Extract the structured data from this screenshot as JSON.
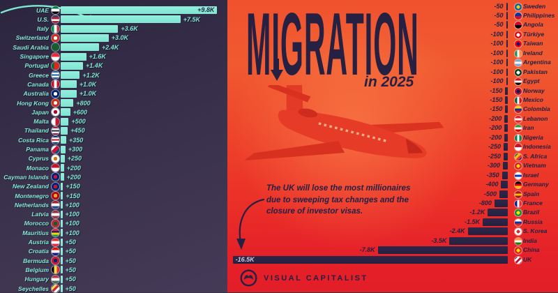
{
  "title": {
    "main": "MIGRATION",
    "sub": "in 2025"
  },
  "annotation": {
    "lines": [
      "The UK will lose the most millionaires",
      "due to sweeping tax changes and the",
      "closure of investor visas."
    ]
  },
  "footer": {
    "brand": "VISUAL CAPITALIST"
  },
  "colors": {
    "left_bg": "#38304a",
    "teal": "#7fe9d3",
    "navy": "#262042",
    "red_top": "#f0522e",
    "red_bottom": "#e21e27",
    "uk_inside_label": "#cfc9dd"
  },
  "chart_data": [
    {
      "type": "bar",
      "title": "Projected millionaires gained in 2025",
      "orientation": "horizontal",
      "legend_position": "none",
      "categories": [
        "UAE",
        "U.S.",
        "Italy",
        "Switzerland",
        "Saudi Arabia",
        "Singapore",
        "Portugal",
        "Greece",
        "Canada",
        "Australia",
        "Hong Kong",
        "Japan",
        "Malta",
        "Thailand",
        "Costa Rica",
        "Panama",
        "Cyprus",
        "Monaco",
        "Cayman Islands",
        "New Zealand",
        "Montenegro",
        "Netherlands",
        "Latvia",
        "Morocco",
        "Mauritius",
        "Austria",
        "Croatia",
        "Bermuda",
        "Belgium",
        "Hungary",
        "Seychelles"
      ],
      "values": [
        9800,
        7500,
        3600,
        3000,
        2400,
        1600,
        1400,
        1200,
        1000,
        1000,
        800,
        600,
        500,
        450,
        350,
        300,
        250,
        200,
        200,
        150,
        150,
        100,
        100,
        100,
        100,
        50,
        50,
        50,
        50,
        50,
        50
      ],
      "labels": [
        "+9.8K",
        "+7.5K",
        "+3.6K",
        "+3.0K",
        "+2.4K",
        "+1.6K",
        "+1.4K",
        "+1.2K",
        "+1.0K",
        "+1.0K",
        "+800",
        "+600",
        "+500",
        "+450",
        "+350",
        "+300",
        "+250",
        "+200",
        "+200",
        "+150",
        "+150",
        "+100",
        "+100",
        "+100",
        "+100",
        "+50",
        "+50",
        "+50",
        "+50",
        "+50",
        "+50"
      ],
      "flags": [
        {
          "d": "rows",
          "c": [
            "#00843d",
            "#ffffff",
            "#000000"
          ]
        },
        {
          "d": "rows",
          "c": [
            "#3c3b6e",
            "#b22234",
            "#ffffff",
            "#b22234"
          ]
        },
        {
          "d": "cols",
          "c": [
            "#009246",
            "#ffffff",
            "#ce2b37"
          ]
        },
        {
          "d": "circle",
          "c": [
            "#da291c",
            "#ffffff"
          ]
        },
        {
          "d": "rows",
          "c": [
            "#165d31"
          ]
        },
        {
          "d": "rows",
          "c": [
            "#ed2939",
            "#ffffff"
          ]
        },
        {
          "d": "cols",
          "c": [
            "#046a38",
            "#da291c",
            "#da291c"
          ]
        },
        {
          "d": "rows",
          "c": [
            "#0d5eaf",
            "#ffffff",
            "#0d5eaf",
            "#ffffff",
            "#0d5eaf"
          ]
        },
        {
          "d": "cols",
          "c": [
            "#d80621",
            "#ffffff",
            "#d80621"
          ]
        },
        {
          "d": "circle",
          "c": [
            "#00247d",
            "#ffffff"
          ]
        },
        {
          "d": "circle",
          "c": [
            "#de2910",
            "#ffffff"
          ]
        },
        {
          "d": "circle",
          "c": [
            "#ffffff",
            "#bc002d"
          ]
        },
        {
          "d": "cols",
          "c": [
            "#ffffff",
            "#cf142b"
          ]
        },
        {
          "d": "rows",
          "c": [
            "#a51931",
            "#f4f5f8",
            "#2d2a4a",
            "#f4f5f8",
            "#a51931"
          ]
        },
        {
          "d": "rows",
          "c": [
            "#002b7f",
            "#ffffff",
            "#ce1126",
            "#ffffff",
            "#002b7f"
          ]
        },
        {
          "d": "diag",
          "c": [
            "#ffffff",
            "#d21034",
            "#005293"
          ]
        },
        {
          "d": "circle",
          "c": [
            "#ffffff",
            "#d57800"
          ]
        },
        {
          "d": "rows",
          "c": [
            "#ce1126",
            "#ffffff"
          ]
        },
        {
          "d": "circle",
          "c": [
            "#00247d",
            "#cf142b"
          ]
        },
        {
          "d": "circle",
          "c": [
            "#00247d",
            "#cc142b"
          ]
        },
        {
          "d": "circle",
          "c": [
            "#c40308",
            "#d4af37"
          ]
        },
        {
          "d": "rows",
          "c": [
            "#ae1c28",
            "#ffffff",
            "#21468b"
          ]
        },
        {
          "d": "rows",
          "c": [
            "#9e3039",
            "#ffffff",
            "#9e3039"
          ]
        },
        {
          "d": "circle",
          "c": [
            "#c1272d",
            "#006233"
          ]
        },
        {
          "d": "rows",
          "c": [
            "#ea2839",
            "#1a206d",
            "#ffd500",
            "#00a551"
          ]
        },
        {
          "d": "rows",
          "c": [
            "#ed2939",
            "#ffffff",
            "#ed2939"
          ]
        },
        {
          "d": "rows",
          "c": [
            "#ff0000",
            "#ffffff",
            "#171796"
          ]
        },
        {
          "d": "circle",
          "c": [
            "#cf142b",
            "#00247d"
          ]
        },
        {
          "d": "cols",
          "c": [
            "#000000",
            "#fae042",
            "#ed2939"
          ]
        },
        {
          "d": "rows",
          "c": [
            "#cd2a3e",
            "#ffffff",
            "#436f4d"
          ]
        },
        {
          "d": "diag",
          "c": [
            "#003f87",
            "#fcd856",
            "#d62828",
            "#ffffff",
            "#007a3d"
          ]
        }
      ]
    },
    {
      "type": "bar",
      "title": "Projected millionaires lost in 2025",
      "orientation": "horizontal",
      "legend_position": "none",
      "categories": [
        "Sweden",
        "Philippines",
        "Angola",
        "Türkiye",
        "Taiwan",
        "Ireland",
        "Argentina",
        "Pakistan",
        "Egypt",
        "Norway",
        "Mexico",
        "Colombia",
        "Lebanon",
        "Iran",
        "Nigeria",
        "Indonesia",
        "S. Africa",
        "Vietnam",
        "Israel",
        "Germany",
        "Spain",
        "France",
        "Brazil",
        "Russia",
        "S. Korea",
        "India",
        "China",
        "UK"
      ],
      "values": [
        -50,
        -50,
        -50,
        -100,
        -100,
        -100,
        -100,
        -100,
        -100,
        -150,
        -150,
        -150,
        -200,
        -200,
        -200,
        -250,
        -250,
        -300,
        -350,
        -400,
        -500,
        -800,
        -1200,
        -1500,
        -2400,
        -3500,
        -7800,
        -16500
      ],
      "labels": [
        "-50",
        "-50",
        "-50",
        "-100",
        "-100",
        "-100",
        "-100",
        "-100",
        "-100",
        "-150",
        "-150",
        "-150",
        "-200",
        "-200",
        "-200",
        "-250",
        "-250",
        "-300",
        "-350",
        "-400",
        "-500",
        "-800",
        "-1.2K",
        "-1.5K",
        "-2.4K",
        "-3.5K",
        "-7.8K",
        "-16.5K"
      ],
      "flags": [
        {
          "d": "circle",
          "c": [
            "#006aa7",
            "#fecc00"
          ]
        },
        {
          "d": "rows",
          "c": [
            "#0038a8",
            "#ce1126"
          ]
        },
        {
          "d": "rows",
          "c": [
            "#cc092f",
            "#000000"
          ]
        },
        {
          "d": "circle",
          "c": [
            "#e30a17",
            "#ffffff"
          ]
        },
        {
          "d": "circle",
          "c": [
            "#fe0000",
            "#000095"
          ]
        },
        {
          "d": "cols",
          "c": [
            "#169b62",
            "#ffffff",
            "#ff883e"
          ]
        },
        {
          "d": "rows",
          "c": [
            "#74acdf",
            "#ffffff",
            "#74acdf"
          ]
        },
        {
          "d": "circle",
          "c": [
            "#01411c",
            "#ffffff"
          ]
        },
        {
          "d": "rows",
          "c": [
            "#ce1126",
            "#ffffff",
            "#000000"
          ]
        },
        {
          "d": "circle",
          "c": [
            "#ba0c2f",
            "#00205b"
          ]
        },
        {
          "d": "cols",
          "c": [
            "#006341",
            "#ffffff",
            "#ce1126"
          ]
        },
        {
          "d": "rows",
          "c": [
            "#fcd116",
            "#003893",
            "#ce1126"
          ]
        },
        {
          "d": "rows",
          "c": [
            "#ed1c24",
            "#ffffff",
            "#ed1c24"
          ]
        },
        {
          "d": "rows",
          "c": [
            "#239f40",
            "#ffffff",
            "#da0000"
          ]
        },
        {
          "d": "cols",
          "c": [
            "#008751",
            "#ffffff",
            "#008751"
          ]
        },
        {
          "d": "rows",
          "c": [
            "#ce1126",
            "#ffffff"
          ]
        },
        {
          "d": "diag",
          "c": [
            "#007749",
            "#ffb612",
            "#de3831",
            "#001489"
          ]
        },
        {
          "d": "circle",
          "c": [
            "#da251d",
            "#ffde00"
          ]
        },
        {
          "d": "rows",
          "c": [
            "#ffffff",
            "#0038b8",
            "#ffffff"
          ]
        },
        {
          "d": "rows",
          "c": [
            "#000000",
            "#dd0000",
            "#ffce00"
          ]
        },
        {
          "d": "rows",
          "c": [
            "#aa151b",
            "#f1bf00",
            "#aa151b"
          ]
        },
        {
          "d": "cols",
          "c": [
            "#002395",
            "#ffffff",
            "#ed2939"
          ]
        },
        {
          "d": "circle",
          "c": [
            "#009c3b",
            "#ffdf00"
          ]
        },
        {
          "d": "rows",
          "c": [
            "#ffffff",
            "#0039a6",
            "#d52b1e"
          ]
        },
        {
          "d": "circle",
          "c": [
            "#ffffff",
            "#cd2e3a"
          ]
        },
        {
          "d": "rows",
          "c": [
            "#ff9933",
            "#ffffff",
            "#138808"
          ]
        },
        {
          "d": "circle",
          "c": [
            "#de2910",
            "#ffde00"
          ]
        },
        {
          "d": "diag",
          "c": [
            "#012169",
            "#ffffff",
            "#c8102e",
            "#ffffff",
            "#012169"
          ]
        }
      ]
    }
  ]
}
